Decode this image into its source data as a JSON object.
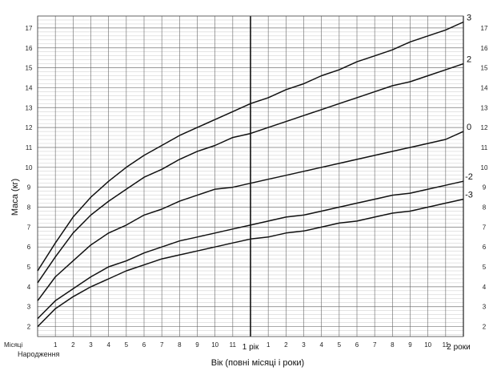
{
  "chart_data": {
    "type": "line",
    "xlabel": "Вік (повні місяці і роки)",
    "ylabel": "Маса (кг)",
    "month_axis_label": "Місяці",
    "birth_label": "Народження",
    "year_labels": [
      "1 рік",
      "2 роки"
    ],
    "month_ticks_year1": [
      "1",
      "2",
      "3",
      "4",
      "5",
      "6",
      "7",
      "8",
      "9",
      "10",
      "11"
    ],
    "month_ticks_year2": [
      "1",
      "2",
      "3",
      "4",
      "5",
      "6",
      "7",
      "8",
      "9",
      "10",
      "11"
    ],
    "x_unit": "months",
    "xlim": [
      0,
      24
    ],
    "ylim": [
      1.5,
      17.6
    ],
    "y_ticks_left": [
      "2",
      "3",
      "4",
      "5",
      "6",
      "7",
      "8",
      "9",
      "10",
      "11",
      "12",
      "13",
      "14",
      "15",
      "16",
      "17"
    ],
    "y_ticks_right": [
      "2",
      "3",
      "4",
      "5",
      "6",
      "7",
      "8",
      "9",
      "10",
      "11",
      "12",
      "13",
      "14",
      "15",
      "16",
      "17"
    ],
    "grid": true,
    "x": [
      0,
      1,
      2,
      3,
      4,
      5,
      6,
      7,
      8,
      9,
      10,
      11,
      12,
      13,
      14,
      15,
      16,
      17,
      18,
      19,
      20,
      21,
      22,
      23,
      24
    ],
    "series": [
      {
        "name": "3",
        "values": [
          4.8,
          6.2,
          7.5,
          8.5,
          9.3,
          10.0,
          10.6,
          11.1,
          11.6,
          12.0,
          12.4,
          12.8,
          13.2,
          13.5,
          13.9,
          14.2,
          14.6,
          14.9,
          15.3,
          15.6,
          15.9,
          16.3,
          16.6,
          16.9,
          17.3
        ]
      },
      {
        "name": "2",
        "values": [
          4.2,
          5.5,
          6.7,
          7.6,
          8.3,
          8.9,
          9.5,
          9.9,
          10.4,
          10.8,
          11.1,
          11.5,
          11.7,
          12.0,
          12.3,
          12.6,
          12.9,
          13.2,
          13.5,
          13.8,
          14.1,
          14.3,
          14.6,
          14.9,
          15.2
        ]
      },
      {
        "name": "0",
        "values": [
          3.3,
          4.5,
          5.3,
          6.1,
          6.7,
          7.1,
          7.6,
          7.9,
          8.3,
          8.6,
          8.9,
          9.0,
          9.2,
          9.4,
          9.6,
          9.8,
          10.0,
          10.2,
          10.4,
          10.6,
          10.8,
          11.0,
          11.2,
          11.4,
          11.8
        ]
      },
      {
        "name": "-2",
        "values": [
          2.4,
          3.3,
          3.9,
          4.5,
          5.0,
          5.3,
          5.7,
          6.0,
          6.3,
          6.5,
          6.7,
          6.9,
          7.1,
          7.3,
          7.5,
          7.6,
          7.8,
          8.0,
          8.2,
          8.4,
          8.6,
          8.7,
          8.9,
          9.1,
          9.3
        ]
      },
      {
        "name": "-3",
        "values": [
          2.0,
          2.9,
          3.5,
          4.0,
          4.4,
          4.8,
          5.1,
          5.4,
          5.6,
          5.8,
          6.0,
          6.2,
          6.4,
          6.5,
          6.7,
          6.8,
          7.0,
          7.2,
          7.3,
          7.5,
          7.7,
          7.8,
          8.0,
          8.2,
          8.4
        ]
      }
    ]
  }
}
